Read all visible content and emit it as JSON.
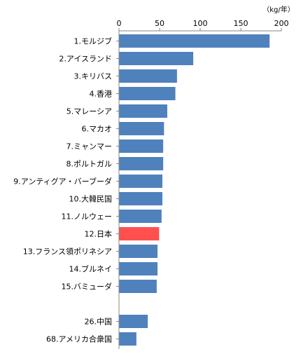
{
  "chart_data": {
    "type": "bar",
    "orientation": "horizontal",
    "unit": "（kg/年）",
    "categories": [
      "1.モルジブ",
      "2.アイスランド",
      "3.キリバス",
      "4.香港",
      "5.マレーシア",
      "6.マカオ",
      "7.ミャンマー",
      "8.ポルトガル",
      "9.アンティグア・バーブーダ",
      "10.大韓民国",
      "11.ノルウェー",
      "12.日本",
      "13.フランス領ポリネシア",
      "14.ブルネイ",
      "15.バミューダ",
      "",
      "26.中国",
      "68.アメリカ合衆国"
    ],
    "values": [
      185,
      91,
      71,
      69,
      59,
      55,
      54,
      54,
      53,
      53,
      52,
      49,
      47,
      47,
      46,
      null,
      35,
      21
    ],
    "xlim": [
      0,
      200
    ],
    "xticks": [
      0,
      50,
      100,
      150,
      200
    ],
    "axis_position": "top",
    "grid": false,
    "legend": "none",
    "bar_color": "#4f81bd",
    "highlight_color": "#ff4f4f",
    "highlight_category": "12.日本"
  }
}
